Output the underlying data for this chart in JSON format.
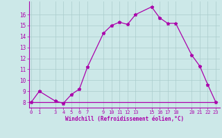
{
  "xlabel": "Windchill (Refroidissement éolien,°C)",
  "x_values": [
    0,
    1,
    3,
    4,
    5,
    6,
    7,
    9,
    10,
    11,
    12,
    13,
    15,
    16,
    17,
    18,
    20,
    21,
    22,
    23
  ],
  "y_values": [
    8.0,
    9.0,
    8.1,
    7.9,
    8.7,
    9.2,
    11.2,
    14.3,
    15.0,
    15.3,
    15.1,
    16.0,
    16.7,
    15.7,
    15.2,
    15.2,
    12.3,
    11.3,
    9.6,
    8.0
  ],
  "y_flat": 8.0,
  "xlim": [
    -0.3,
    23.5
  ],
  "ylim": [
    7.5,
    17.2
  ],
  "yticks": [
    8,
    9,
    10,
    11,
    12,
    13,
    14,
    15,
    16
  ],
  "xticks": [
    0,
    1,
    3,
    4,
    5,
    6,
    7,
    9,
    10,
    11,
    12,
    13,
    15,
    16,
    17,
    18,
    20,
    21,
    22,
    23
  ],
  "line_color": "#aa00aa",
  "bg_color": "#cce8e8",
  "grid_color": "#aacccc",
  "text_color": "#aa00aa",
  "marker": "*",
  "marker_size": 3.5,
  "linewidth": 0.9
}
